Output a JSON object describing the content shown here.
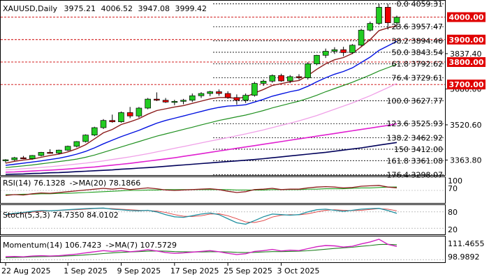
{
  "chart_data": {
    "type": "candlestick",
    "symbol": "XAUUSD",
    "timeframe": "Daily",
    "ohlc": {
      "open": "3975.21",
      "high": "4006.52",
      "low": "3947.08",
      "close": "3999.42"
    },
    "y_ticks": [
      "3837.40",
      "3680.00",
      "3520.60",
      "3363.80"
    ],
    "x_labels": [
      "22 Aug 2025",
      "1 Sep 2025",
      "9 Sep 2025",
      "17 Sep 2025",
      "25 Sep 2025",
      "3 Oct 2025"
    ],
    "ylim": [
      3300,
      4070
    ],
    "fib_levels": [
      {
        "label": "0.0 4059.31",
        "price": 4059.31
      },
      {
        "label": "23.6 3957.47",
        "price": 3957.47
      },
      {
        "label": "38.2 3894.46",
        "price": 3894.46
      },
      {
        "label": "50.0 3843.54",
        "price": 3843.54
      },
      {
        "label": "61.8 3792.62",
        "price": 3792.62
      },
      {
        "label": "76.4 3729.61",
        "price": 3729.61
      },
      {
        "label": "100.0 3627.77",
        "price": 3627.77
      },
      {
        "label": "123.6 3525.93",
        "price": 3525.93
      },
      {
        "label": "138.2 3462.92",
        "price": 3462.92
      },
      {
        "label": "150 3412.00",
        "price": 3412.0
      },
      {
        "label": "161.8 3361.08",
        "price": 3361.08
      },
      {
        "label": "176.4 3298.07",
        "price": 3298.07
      }
    ],
    "marked_levels": [
      {
        "label": "4000.00",
        "price": 4000
      },
      {
        "label": "3900.00",
        "price": 3900
      },
      {
        "label": "3800.00",
        "price": 3800
      },
      {
        "label": "3700.00",
        "price": 3700
      }
    ],
    "candles": [
      [
        3362,
        3368,
        3352,
        3365
      ],
      [
        3365,
        3378,
        3360,
        3374
      ],
      [
        3374,
        3382,
        3368,
        3370
      ],
      [
        3370,
        3386,
        3366,
        3384
      ],
      [
        3384,
        3400,
        3380,
        3398
      ],
      [
        3398,
        3412,
        3394,
        3395
      ],
      [
        3395,
        3410,
        3390,
        3408
      ],
      [
        3408,
        3428,
        3404,
        3425
      ],
      [
        3425,
        3448,
        3420,
        3446
      ],
      [
        3446,
        3478,
        3442,
        3475
      ],
      [
        3475,
        3512,
        3470,
        3508
      ],
      [
        3508,
        3546,
        3502,
        3540
      ],
      [
        3540,
        3566,
        3530,
        3534
      ],
      [
        3534,
        3580,
        3530,
        3575
      ],
      [
        3575,
        3600,
        3550,
        3560
      ],
      [
        3560,
        3600,
        3552,
        3595
      ],
      [
        3595,
        3640,
        3590,
        3635
      ],
      [
        3635,
        3665,
        3626,
        3630
      ],
      [
        3630,
        3640,
        3618,
        3622
      ],
      [
        3622,
        3632,
        3608,
        3625
      ],
      [
        3625,
        3636,
        3612,
        3630
      ],
      [
        3630,
        3660,
        3622,
        3650
      ],
      [
        3650,
        3666,
        3640,
        3660
      ],
      [
        3660,
        3672,
        3648,
        3668
      ],
      [
        3668,
        3678,
        3650,
        3660
      ],
      [
        3660,
        3670,
        3636,
        3642
      ],
      [
        3642,
        3656,
        3610,
        3630
      ],
      [
        3630,
        3660,
        3618,
        3652
      ],
      [
        3652,
        3712,
        3646,
        3705
      ],
      [
        3705,
        3722,
        3694,
        3715
      ],
      [
        3715,
        3745,
        3708,
        3740
      ],
      [
        3740,
        3748,
        3712,
        3716
      ],
      [
        3716,
        3742,
        3706,
        3735
      ],
      [
        3735,
        3746,
        3722,
        3730
      ],
      [
        3730,
        3800,
        3722,
        3792
      ],
      [
        3792,
        3832,
        3786,
        3830
      ],
      [
        3830,
        3860,
        3818,
        3848
      ],
      [
        3848,
        3866,
        3836,
        3855
      ],
      [
        3855,
        3868,
        3826,
        3842
      ],
      [
        3842,
        3880,
        3836,
        3875
      ],
      [
        3875,
        3948,
        3870,
        3942
      ],
      [
        3942,
        3980,
        3936,
        3972
      ],
      [
        3972,
        4058,
        3965,
        4044
      ],
      [
        4044,
        4059,
        3945,
        3975
      ],
      [
        3975,
        4006.52,
        3947.08,
        3999.42
      ]
    ],
    "ma_fast": [
      3350,
      3358,
      3364,
      3368,
      3376,
      3384,
      3390,
      3400,
      3414,
      3432,
      3458,
      3485,
      3500,
      3522,
      3534,
      3548,
      3568,
      3584,
      3592,
      3600,
      3606,
      3616,
      3626,
      3636,
      3642,
      3642,
      3638,
      3644,
      3662,
      3678,
      3696,
      3704,
      3712,
      3718,
      3740,
      3768,
      3792,
      3810,
      3820,
      3838,
      3868,
      3900,
      3940,
      3952,
      3962
    ],
    "ma_mid": [
      3340,
      3345,
      3350,
      3355,
      3360,
      3366,
      3372,
      3380,
      3390,
      3402,
      3418,
      3436,
      3452,
      3468,
      3482,
      3496,
      3512,
      3528,
      3540,
      3550,
      3560,
      3570,
      3580,
      3590,
      3598,
      3604,
      3606,
      3610,
      3622,
      3634,
      3648,
      3658,
      3668,
      3676,
      3692,
      3712,
      3730,
      3746,
      3758,
      3774,
      3798,
      3822,
      3852,
      3872,
      3892
    ],
    "ma_green": [
      3330,
      3334,
      3338,
      3342,
      3347,
      3352,
      3357,
      3362,
      3368,
      3376,
      3386,
      3398,
      3410,
      3422,
      3434,
      3446,
      3458,
      3470,
      3480,
      3490,
      3500,
      3510,
      3520,
      3530,
      3540,
      3548,
      3556,
      3564,
      3574,
      3584,
      3596,
      3606,
      3616,
      3626,
      3638,
      3652,
      3668,
      3682,
      3696,
      3710,
      3726,
      3742,
      3760,
      3775,
      3790
    ],
    "ma_pink": [
      3320,
      3322,
      3325,
      3328,
      3331,
      3334,
      3338,
      3342,
      3346,
      3350,
      3355,
      3360,
      3366,
      3372,
      3378,
      3385,
      3392,
      3400,
      3408,
      3416,
      3424,
      3432,
      3440,
      3448,
      3456,
      3464,
      3472,
      3480,
      3489,
      3498,
      3508,
      3518,
      3528,
      3538,
      3550,
      3562,
      3576,
      3590,
      3604,
      3618,
      3634,
      3650,
      3668,
      3686,
      3705
    ],
    "ma_magenta": [
      3310,
      3311,
      3313,
      3315,
      3317,
      3319,
      3321,
      3324,
      3327,
      3330,
      3333,
      3337,
      3341,
      3345,
      3349,
      3354,
      3359,
      3364,
      3369,
      3374,
      3380,
      3386,
      3392,
      3398,
      3404,
      3410,
      3416,
      3422,
      3428,
      3434,
      3440,
      3446,
      3452,
      3458,
      3464,
      3470,
      3476,
      3482,
      3488,
      3494,
      3500,
      3506,
      3512,
      3518,
      3525
    ],
    "ma_navy": [
      3300,
      3301,
      3302,
      3304,
      3305,
      3307,
      3308,
      3310,
      3312,
      3314,
      3316,
      3318,
      3320,
      3323,
      3325,
      3328,
      3330,
      3333,
      3336,
      3339,
      3342,
      3345,
      3348,
      3351,
      3354,
      3357,
      3360,
      3363,
      3366,
      3370,
      3374,
      3378,
      3382,
      3386,
      3390,
      3394,
      3398,
      3403,
      3408,
      3413,
      3418,
      3424,
      3430,
      3436,
      3442
    ],
    "rsi": {
      "label": "RSI(14) 76.1328",
      "ma_label": "->MA(20) 78.1866",
      "ticks": [
        "100",
        "70"
      ],
      "values": [
        58,
        60,
        59,
        62,
        64,
        63,
        65,
        67,
        69,
        71,
        73,
        75,
        73,
        75,
        72,
        74,
        76,
        74,
        71,
        70,
        71,
        72,
        73,
        74,
        72,
        68,
        65,
        67,
        72,
        73,
        75,
        72,
        73,
        73,
        76,
        78,
        79,
        78,
        76,
        77,
        80,
        81,
        82,
        78,
        76.13
      ],
      "ma": [
        60,
        60,
        61,
        61,
        62,
        62,
        63,
        63,
        64,
        65,
        66,
        67,
        68,
        69,
        70,
        70,
        71,
        71,
        72,
        72,
        72,
        72,
        72,
        72,
        72,
        72,
        71,
        71,
        71,
        71,
        72,
        72,
        72,
        72,
        73,
        73,
        74,
        74,
        74,
        75,
        76,
        76,
        77,
        78,
        78.19
      ]
    },
    "stoch": {
      "label": "Stoch(5,3,3) 74.7350 84.0102",
      "ticks": [
        "80",
        "20"
      ],
      "k": [
        70,
        75,
        78,
        82,
        85,
        84,
        86,
        88,
        90,
        92,
        93,
        94,
        90,
        88,
        85,
        84,
        86,
        80,
        70,
        62,
        60,
        66,
        72,
        76,
        70,
        55,
        40,
        35,
        48,
        62,
        72,
        70,
        68,
        70,
        80,
        88,
        90,
        86,
        82,
        86,
        90,
        92,
        93,
        85,
        74.74
      ],
      "d": [
        68,
        72,
        76,
        79,
        82,
        84,
        85,
        87,
        88,
        90,
        92,
        93,
        92,
        90,
        88,
        86,
        85,
        83,
        78,
        70,
        64,
        63,
        66,
        72,
        73,
        66,
        55,
        43,
        41,
        48,
        61,
        68,
        70,
        69,
        73,
        80,
        86,
        88,
        86,
        85,
        86,
        89,
        92,
        90,
        84.01
      ]
    },
    "momentum": {
      "label": "Momentum(14) 106.7423",
      "ma_label": "->MA(7) 107.5729",
      "ticks": [
        "111.4655",
        "98.9892"
      ],
      "values": [
        101.5,
        101.6,
        101.4,
        101.8,
        102.0,
        101.8,
        102.0,
        102.4,
        102.8,
        103.4,
        104.0,
        104.6,
        104.2,
        104.6,
        104.0,
        104.4,
        105.0,
        104.4,
        103.6,
        103.2,
        103.4,
        103.8,
        104.2,
        104.6,
        104.0,
        103.2,
        102.6,
        103.0,
        104.2,
        104.6,
        105.2,
        104.4,
        104.8,
        104.6,
        105.6,
        106.6,
        107.2,
        107.0,
        106.4,
        106.8,
        108.0,
        109.0,
        110.4,
        107.8,
        106.74
      ],
      "ma": [
        101.0,
        101.1,
        101.2,
        101.4,
        101.5,
        101.6,
        101.7,
        101.9,
        102.1,
        102.4,
        102.7,
        103.1,
        103.4,
        103.7,
        103.9,
        104.1,
        104.3,
        104.4,
        104.3,
        104.1,
        104.0,
        103.9,
        103.9,
        104.0,
        104.0,
        103.9,
        103.7,
        103.6,
        103.7,
        103.9,
        104.1,
        104.1,
        104.2,
        104.3,
        104.5,
        104.9,
        105.3,
        105.7,
        106.0,
        106.3,
        106.8,
        107.2,
        107.7,
        107.8,
        107.57
      ]
    }
  }
}
